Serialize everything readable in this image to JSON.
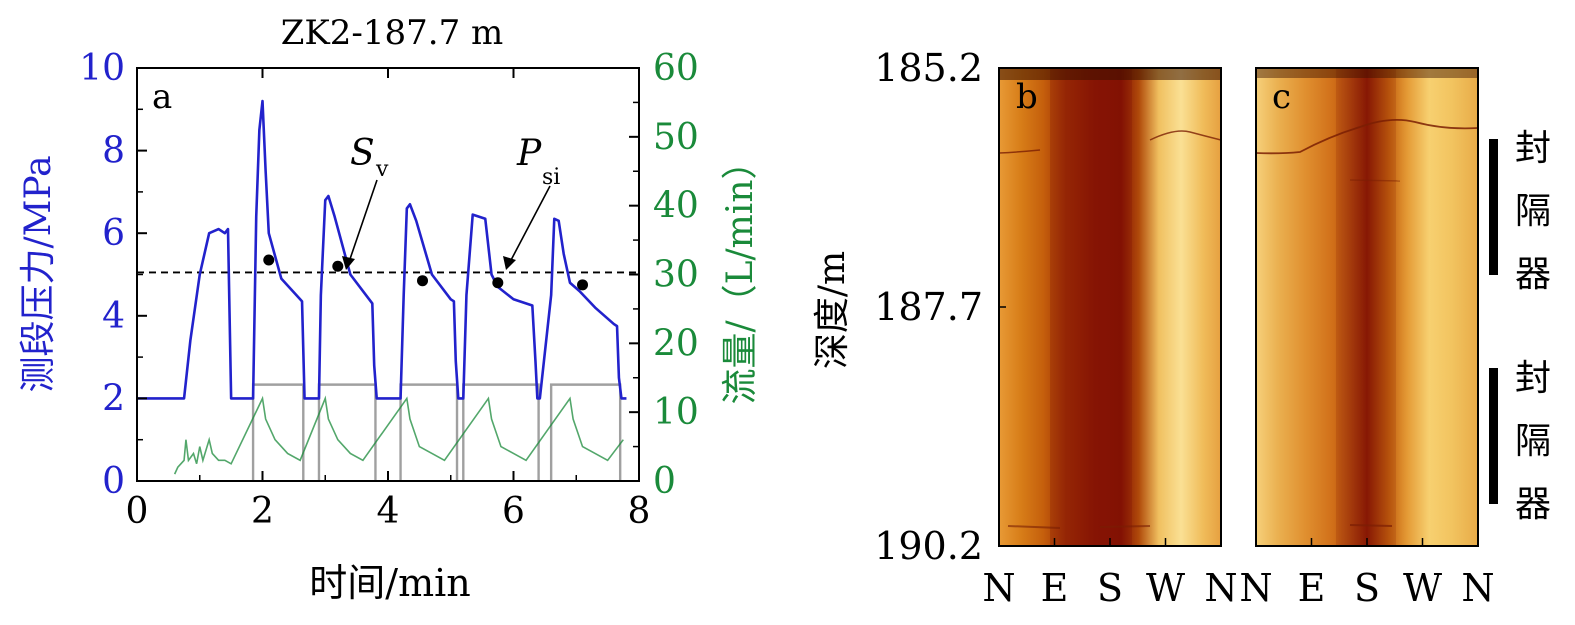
{
  "chart_data": [
    {
      "type": "line",
      "panel_label": "a",
      "title": "ZK2-187.7 m",
      "xlabel": "时间/min",
      "ylabel_left": "测段压力/MPa",
      "ylabel_right": "流量/（L/min）",
      "xlim": [
        0,
        8
      ],
      "ylim_left": [
        0,
        10
      ],
      "ylim_right": [
        0,
        60
      ],
      "xticks": [
        "0",
        "2",
        "4",
        "6",
        "8"
      ],
      "yticks_left": [
        "0",
        "2",
        "4",
        "6",
        "8",
        "10"
      ],
      "yticks_right": [
        "0",
        "10",
        "20",
        "30",
        "40",
        "50",
        "60"
      ],
      "colors": {
        "pressure": "#2222cc",
        "flow_rate": "#1a8a3a",
        "flow_grey": "#a0a0a0",
        "reference_line": "#000000"
      },
      "reference_line": {
        "y": 5.05,
        "style": "dashed"
      },
      "annotations": [
        {
          "text": "S",
          "subscript": "v",
          "points_to": [
            3.65,
            5.05
          ]
        },
        {
          "text": "P",
          "subscript": "si",
          "points_to": [
            5.85,
            5.05
          ]
        }
      ],
      "series": [
        {
          "name": "pressure",
          "axis": "left",
          "x": [
            0.0,
            0.75,
            0.85,
            1.0,
            1.15,
            1.3,
            1.4,
            1.45,
            1.5,
            1.85,
            1.9,
            1.95,
            2.0,
            2.05,
            2.1,
            2.3,
            2.6,
            2.63,
            2.67,
            2.9,
            2.93,
            3.0,
            3.05,
            3.15,
            3.4,
            3.7,
            3.75,
            3.78,
            3.82,
            4.2,
            4.25,
            4.3,
            4.35,
            4.45,
            4.7,
            5.0,
            5.05,
            5.08,
            5.12,
            5.2,
            5.25,
            5.35,
            5.55,
            5.65,
            5.75,
            6.0,
            6.3,
            6.35,
            6.38,
            6.42,
            6.6,
            6.65,
            6.72,
            6.8,
            6.9,
            7.05,
            7.3,
            7.6,
            7.65,
            7.68,
            7.72,
            7.8
          ],
          "y": [
            2.0,
            2.0,
            3.4,
            5.0,
            6.0,
            6.1,
            6.0,
            6.1,
            2.0,
            2.0,
            6.4,
            8.5,
            9.2,
            7.5,
            6.0,
            4.9,
            4.4,
            4.35,
            2.0,
            2.0,
            4.5,
            6.8,
            6.9,
            6.4,
            5.0,
            4.4,
            4.3,
            2.8,
            2.0,
            2.0,
            4.5,
            6.6,
            6.7,
            6.3,
            5.0,
            4.4,
            4.35,
            2.9,
            2.0,
            2.0,
            4.5,
            6.45,
            6.35,
            5.0,
            4.7,
            4.4,
            4.25,
            2.9,
            2.0,
            2.0,
            4.5,
            6.35,
            6.3,
            5.5,
            4.8,
            4.6,
            4.2,
            3.8,
            3.75,
            2.5,
            2.0,
            2.0
          ]
        },
        {
          "name": "flow_rate",
          "axis": "right",
          "x": [
            0.6,
            0.65,
            0.75,
            0.78,
            0.82,
            0.9,
            0.95,
            1.0,
            1.05,
            1.1,
            1.15,
            1.2,
            1.3,
            1.4,
            1.5,
            2.0,
            2.05,
            2.2,
            2.4,
            2.6,
            3.0,
            3.05,
            3.2,
            3.4,
            3.6,
            4.3,
            4.35,
            4.5,
            4.7,
            4.9,
            5.6,
            5.65,
            5.8,
            6.0,
            6.2,
            6.9,
            6.95,
            7.1,
            7.3,
            7.5,
            7.75
          ],
          "y": [
            1,
            2,
            3,
            6,
            3,
            4,
            2.5,
            5,
            3,
            4.5,
            6,
            4,
            3,
            3,
            2.5,
            12,
            9,
            6,
            4,
            3,
            12,
            9,
            6,
            4,
            3,
            12,
            9,
            5,
            4,
            3,
            12,
            9,
            5,
            4,
            3,
            12,
            9,
            5,
            4,
            3,
            6
          ]
        }
      ],
      "markers": {
        "name": "selected points",
        "axis": "left",
        "x": [
          2.1,
          3.2,
          4.55,
          5.75,
          7.1
        ],
        "y": [
          5.35,
          5.2,
          4.85,
          4.8,
          4.75
        ]
      }
    },
    {
      "type": "heatmap",
      "panel_label": "b",
      "ylabel": "深度/m",
      "yticks": [
        "185.2",
        "187.7",
        "190.2"
      ],
      "xticks": [
        "N",
        "E",
        "S",
        "W",
        "N"
      ],
      "colors": {
        "dark": "#8c1a06",
        "mid": "#d8841a",
        "light": "#f8dd80"
      }
    },
    {
      "type": "heatmap",
      "panel_label": "c",
      "xticks": [
        "N",
        "E",
        "S",
        "W",
        "N"
      ],
      "packer_labels": [
        {
          "lines": [
            "封",
            "隔",
            "器"
          ]
        },
        {
          "lines": [
            "封",
            "隔",
            "器"
          ]
        }
      ],
      "colors": {
        "dark": "#8c1a06",
        "mid": "#d8841a",
        "light": "#f8dd80"
      }
    }
  ]
}
